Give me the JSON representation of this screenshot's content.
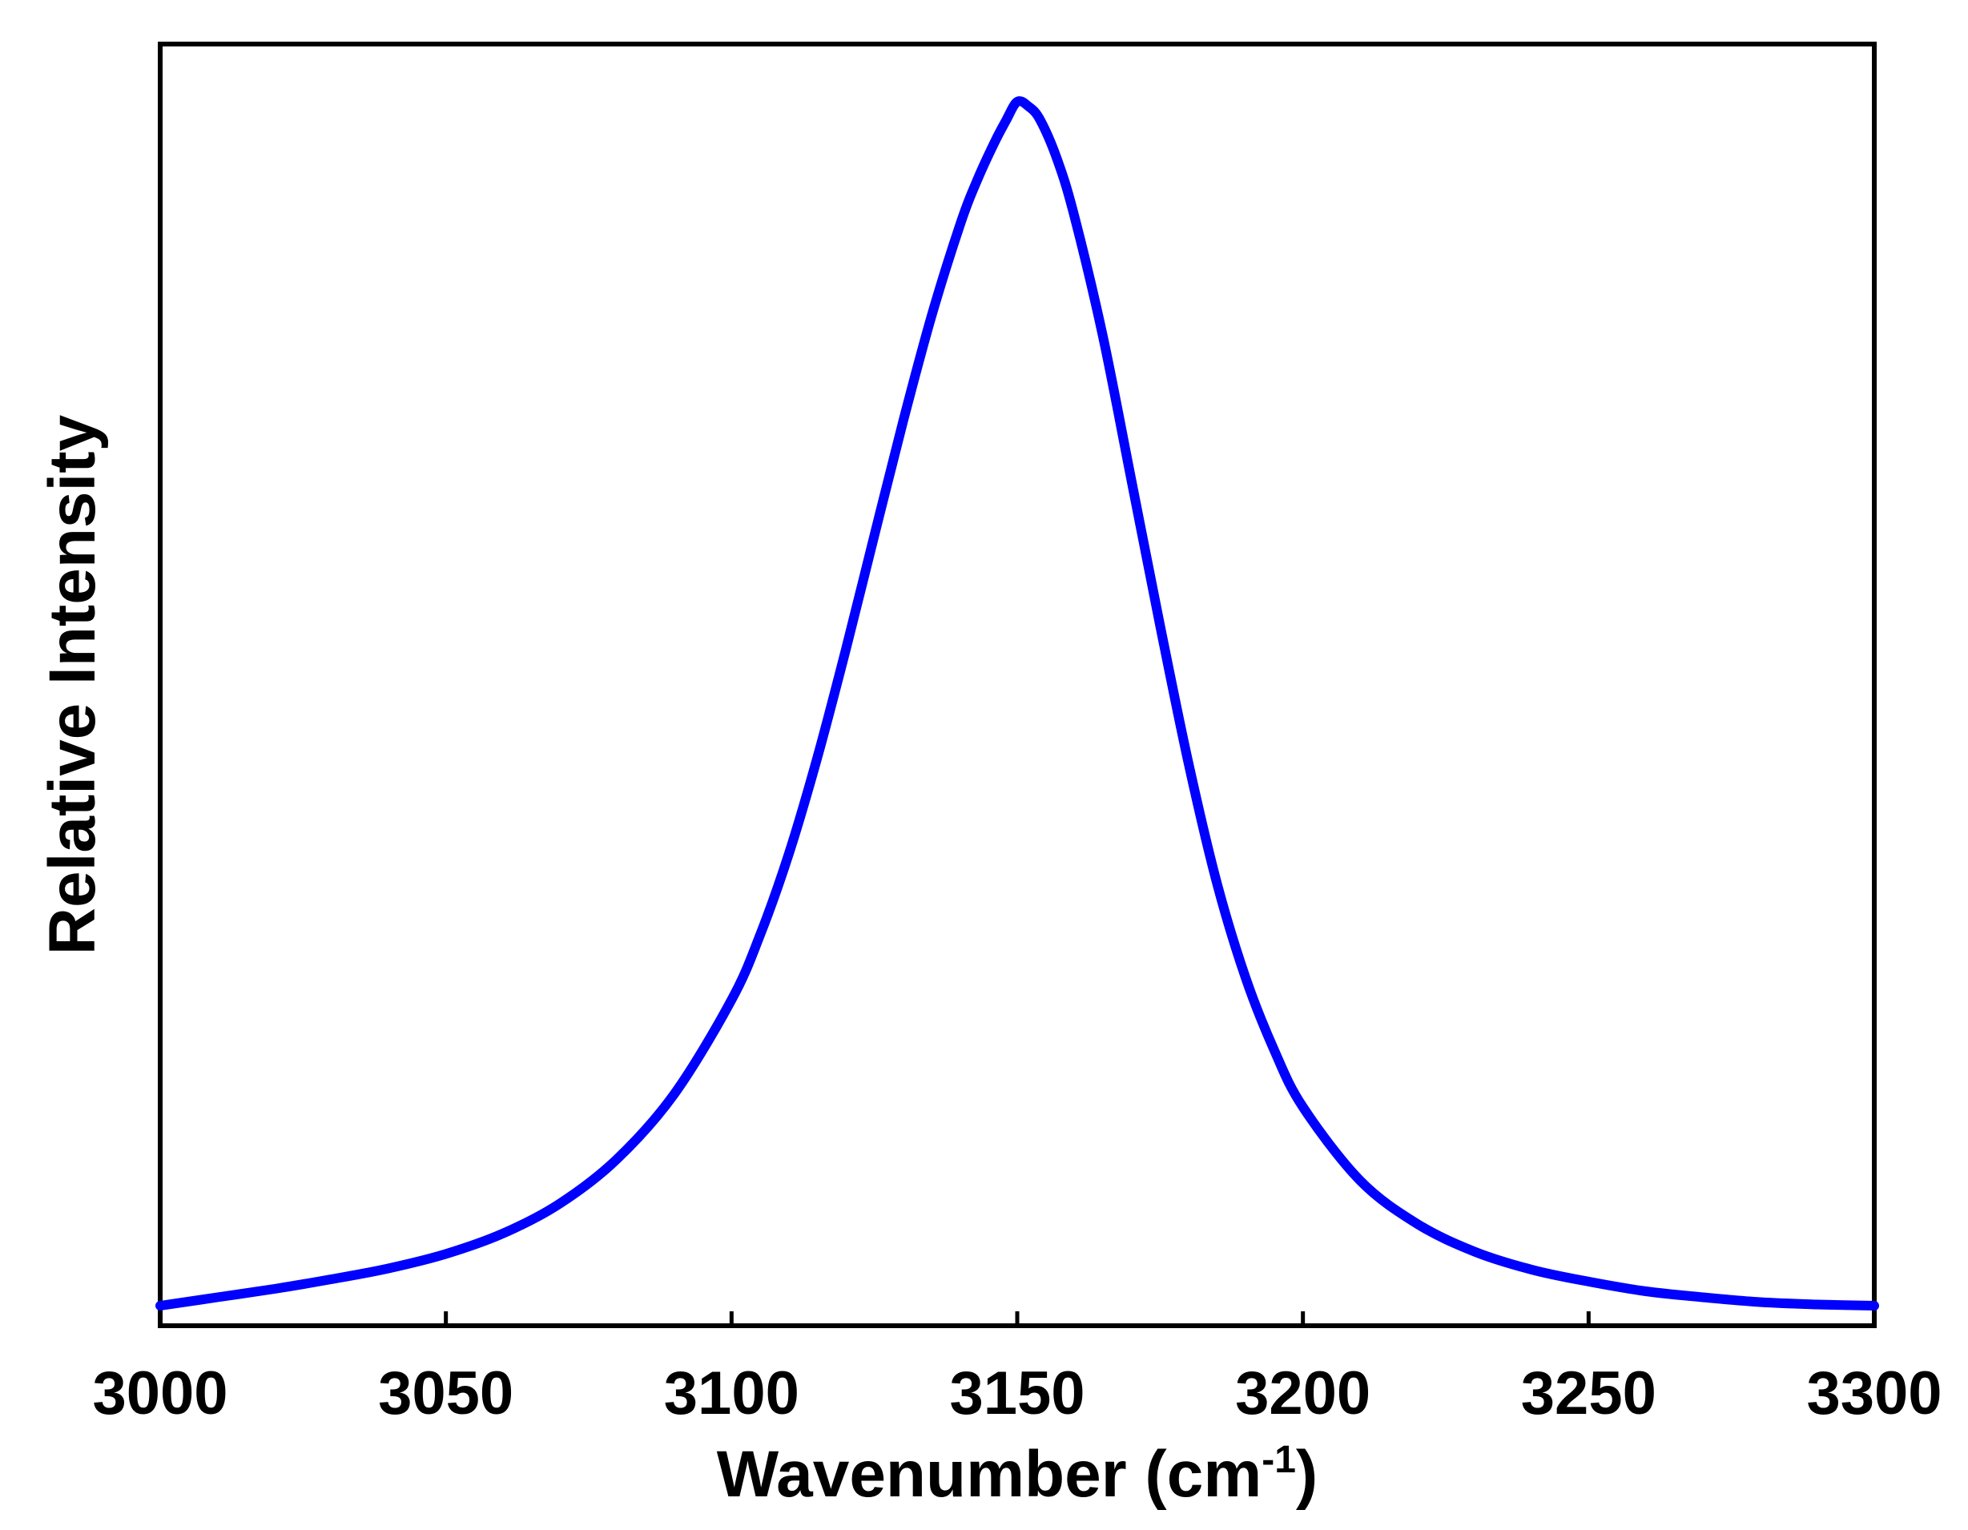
{
  "chart_data": {
    "type": "line",
    "title": "",
    "xlabel": "Wavenumber (cm",
    "xlabel_superscript": "-1",
    "xlabel_close": ")",
    "ylabel": "Relative Intensity",
    "xlim": [
      3000,
      3300
    ],
    "ylim": [
      0,
      1.05
    ],
    "xticks": [
      3000,
      3050,
      3100,
      3150,
      3200,
      3250,
      3300
    ],
    "xtick_labels": [
      "3000",
      "3050",
      "3100",
      "3150",
      "3200",
      "3250",
      "3300"
    ],
    "y_tick_labels_shown": false,
    "grid": false,
    "legend": "none",
    "line_color": "#0000ff",
    "series": [
      {
        "x": [
          3000,
          3010,
          3020,
          3030,
          3040,
          3050,
          3060,
          3070,
          3080,
          3090,
          3100,
          3105,
          3110,
          3115,
          3120,
          3125,
          3130,
          3135,
          3140,
          3143,
          3146,
          3148,
          3150,
          3152,
          3154,
          3157,
          3160,
          3165,
          3170,
          3175,
          3180,
          3185,
          3190,
          3195,
          3200,
          3210,
          3220,
          3230,
          3240,
          3250,
          3260,
          3270,
          3280,
          3290,
          3300
        ],
        "y": [
          0.0,
          0.007,
          0.014,
          0.022,
          0.031,
          0.043,
          0.06,
          0.085,
          0.122,
          0.176,
          0.254,
          0.308,
          0.375,
          0.455,
          0.545,
          0.64,
          0.734,
          0.822,
          0.898,
          0.935,
          0.966,
          0.984,
          1.0,
          0.996,
          0.985,
          0.952,
          0.905,
          0.805,
          0.685,
          0.565,
          0.45,
          0.35,
          0.272,
          0.212,
          0.165,
          0.104,
          0.068,
          0.045,
          0.03,
          0.02,
          0.012,
          0.007,
          0.003,
          0.001,
          0.0
        ]
      }
    ]
  }
}
